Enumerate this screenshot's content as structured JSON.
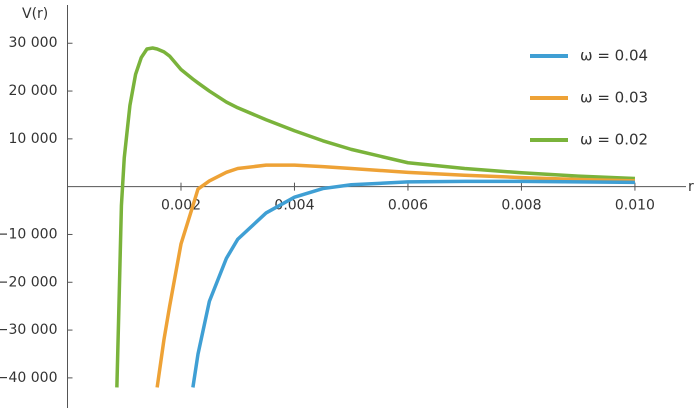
{
  "chart_data": {
    "type": "line",
    "x_label": "r",
    "y_label": "V(r)",
    "x": [
      0.00087,
      0.0009,
      0.00095,
      0.001,
      0.0011,
      0.0012,
      0.0013,
      0.0014,
      0.0015,
      0.00158,
      0.0017,
      0.0018,
      0.002,
      0.00221,
      0.0023,
      0.0025,
      0.0028,
      0.003,
      0.0035,
      0.004,
      0.0045,
      0.005,
      0.006,
      0.007,
      0.008,
      0.009,
      0.01
    ],
    "series": [
      {
        "name": "ω = 0.04",
        "color": "#3f9fd4",
        "values": [
          null,
          null,
          null,
          null,
          null,
          null,
          null,
          null,
          null,
          null,
          null,
          null,
          null,
          -42000,
          -35000,
          -24000,
          -15000,
          -11000,
          -5500,
          -2200,
          -400,
          400,
          1000,
          1100,
          1100,
          1000,
          900
        ]
      },
      {
        "name": "ω = 0.03",
        "color": "#eea236",
        "values": [
          null,
          null,
          null,
          null,
          null,
          null,
          null,
          null,
          null,
          -42000,
          -32000,
          -25000,
          -12000,
          -4000,
          -500,
          1200,
          3000,
          3800,
          4500,
          4500,
          4200,
          3800,
          3000,
          2400,
          1900,
          1500,
          1200
        ]
      },
      {
        "name": "ω = 0.02",
        "color": "#7ab33b",
        "values": [
          -42000,
          -28000,
          -4000,
          6000,
          17000,
          23500,
          27000,
          28800,
          29000,
          28800,
          28200,
          27300,
          24500,
          22500,
          21700,
          20000,
          17700,
          16500,
          14000,
          11700,
          9600,
          7800,
          5000,
          3800,
          2900,
          2200,
          1700
        ]
      }
    ],
    "xlim": [
      0,
      0.0109
    ],
    "ylim": [
      -46300,
      38000
    ],
    "xticks": [
      0.002,
      0.004,
      0.006,
      0.008,
      {
        "value": 0.01,
        "label": "0.010"
      }
    ],
    "yticks": [
      {
        "value": -40000,
        "label": "−40 000"
      },
      {
        "value": -30000,
        "label": "−30 000"
      },
      {
        "value": -20000,
        "label": "−20 000"
      },
      {
        "value": -10000,
        "label": "−10 000"
      },
      {
        "value": 10000,
        "label": "10 000"
      },
      {
        "value": 20000,
        "label": "20 000"
      },
      {
        "value": 30000,
        "label": "30 000"
      }
    ],
    "legend": "top-right"
  }
}
